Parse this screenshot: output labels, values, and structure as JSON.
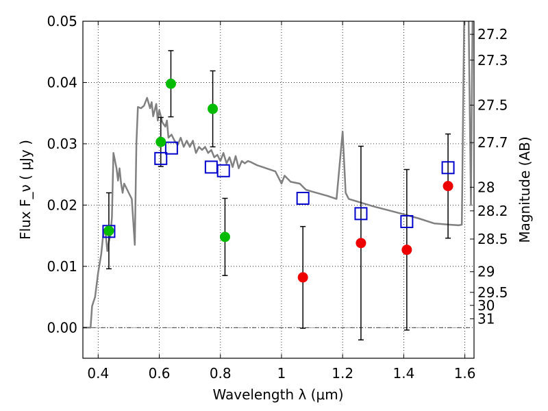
{
  "chart_data": {
    "type": "scatter",
    "xlabel": "Wavelength  λ (μm)",
    "ylabel": "Flux  F_ν  ( μJy )",
    "ylabel_right": "Magnitude (AB)",
    "xlim": [
      0.35,
      1.63
    ],
    "ylim": [
      -0.005,
      0.05
    ],
    "grid": true,
    "x_ticks": [
      {
        "value": 0.4,
        "label": "0.4"
      },
      {
        "value": 0.6,
        "label": "0.6"
      },
      {
        "value": 0.8,
        "label": "0.8"
      },
      {
        "value": 1.0,
        "label": "1"
      },
      {
        "value": 1.2,
        "label": "1.2"
      },
      {
        "value": 1.4,
        "label": "1.4"
      },
      {
        "value": 1.6,
        "label": "1.6"
      }
    ],
    "y_ticks": [
      {
        "value": 0.0,
        "label": "0.00"
      },
      {
        "value": 0.01,
        "label": "0.01"
      },
      {
        "value": 0.02,
        "label": "0.02"
      },
      {
        "value": 0.03,
        "label": "0.03"
      },
      {
        "value": 0.04,
        "label": "0.04"
      },
      {
        "value": 0.05,
        "label": "0.05"
      }
    ],
    "right_ticks": [
      {
        "mag": 27.2,
        "label": "27.2"
      },
      {
        "mag": 27.3,
        "label": "27.3"
      },
      {
        "mag": 27.5,
        "label": "27.5"
      },
      {
        "mag": 27.7,
        "label": "27.7"
      },
      {
        "mag": 28,
        "label": "28"
      },
      {
        "mag": 28.2,
        "label": "28.2"
      },
      {
        "mag": 28.5,
        "label": "28.5"
      },
      {
        "mag": 29,
        "label": "29"
      },
      {
        "mag": 29.5,
        "label": "29.5"
      },
      {
        "mag": 30,
        "label": "30"
      },
      {
        "mag": 31,
        "label": "31"
      }
    ],
    "colors": {
      "model": "#808080",
      "green": "#00bb00",
      "red": "#ee0000",
      "square": "#0000cc",
      "errorbar": "#000000"
    },
    "model_sed": {
      "x": [
        0.35,
        0.375,
        0.38,
        0.39,
        0.4,
        0.41,
        0.415,
        0.42,
        0.425,
        0.43,
        0.435,
        0.44,
        0.445,
        0.45,
        0.46,
        0.465,
        0.47,
        0.475,
        0.48,
        0.485,
        0.49,
        0.5,
        0.51,
        0.52,
        0.525,
        0.53,
        0.54,
        0.55,
        0.56,
        0.57,
        0.575,
        0.58,
        0.59,
        0.595,
        0.6,
        0.605,
        0.61,
        0.62,
        0.625,
        0.63,
        0.64,
        0.65,
        0.66,
        0.67,
        0.68,
        0.69,
        0.7,
        0.71,
        0.72,
        0.73,
        0.74,
        0.75,
        0.76,
        0.77,
        0.78,
        0.79,
        0.8,
        0.81,
        0.82,
        0.83,
        0.84,
        0.85,
        0.86,
        0.87,
        0.88,
        0.89,
        0.9,
        0.92,
        0.95,
        0.98,
        1.0,
        1.01,
        1.03,
        1.06,
        1.08,
        1.1,
        1.15,
        1.18,
        1.2,
        1.21,
        1.22,
        1.3,
        1.4,
        1.45,
        1.5,
        1.55,
        1.58,
        1.59,
        1.6,
        1.61,
        1.62,
        1.625
      ],
      "y": [
        0.0,
        0.0,
        0.0035,
        0.005,
        0.009,
        0.012,
        0.0145,
        0.016,
        0.015,
        0.0125,
        0.014,
        0.015,
        0.018,
        0.0285,
        0.026,
        0.024,
        0.026,
        0.0235,
        0.022,
        0.0235,
        0.023,
        0.022,
        0.021,
        0.0135,
        0.03,
        0.036,
        0.0358,
        0.0362,
        0.0375,
        0.0358,
        0.0368,
        0.0345,
        0.0365,
        0.0338,
        0.0355,
        0.0345,
        0.0335,
        0.0328,
        0.0338,
        0.031,
        0.0315,
        0.0305,
        0.0298,
        0.031,
        0.0295,
        0.0305,
        0.0295,
        0.0305,
        0.0285,
        0.0295,
        0.029,
        0.0295,
        0.0285,
        0.029,
        0.0278,
        0.0282,
        0.0272,
        0.0285,
        0.0268,
        0.0278,
        0.0262,
        0.028,
        0.026,
        0.0272,
        0.0268,
        0.0272,
        0.027,
        0.0265,
        0.026,
        0.0255,
        0.0235,
        0.0248,
        0.0238,
        0.0235,
        0.0225,
        0.0222,
        0.0215,
        0.021,
        0.032,
        0.022,
        0.021,
        0.0198,
        0.0185,
        0.0178,
        0.017,
        0.0168,
        0.0167,
        0.0168,
        0.06,
        0.06,
        0.02,
        0.05
      ]
    },
    "green_points": [
      {
        "x": 0.435,
        "y": 0.0158,
        "err": 0.0062
      },
      {
        "x": 0.605,
        "y": 0.0303,
        "err": 0.004
      },
      {
        "x": 0.638,
        "y": 0.0398,
        "err": 0.0054
      },
      {
        "x": 0.775,
        "y": 0.0357,
        "err": 0.0062
      },
      {
        "x": 0.815,
        "y": 0.0148,
        "err": 0.0063
      }
    ],
    "red_points": [
      {
        "x": 1.07,
        "y": 0.0082,
        "err": 0.0083
      },
      {
        "x": 1.26,
        "y": 0.0138,
        "err": 0.0158
      },
      {
        "x": 1.41,
        "y": 0.0127,
        "err": 0.0131
      },
      {
        "x": 1.545,
        "y": 0.0231,
        "err": 0.0085
      }
    ],
    "model_squares": [
      {
        "x": 0.435,
        "y": 0.0157
      },
      {
        "x": 0.605,
        "y": 0.0276
      },
      {
        "x": 0.64,
        "y": 0.0293
      },
      {
        "x": 0.77,
        "y": 0.0262
      },
      {
        "x": 0.81,
        "y": 0.0256
      },
      {
        "x": 1.07,
        "y": 0.0211
      },
      {
        "x": 1.26,
        "y": 0.0186
      },
      {
        "x": 1.41,
        "y": 0.0173
      },
      {
        "x": 1.545,
        "y": 0.0261
      }
    ]
  }
}
